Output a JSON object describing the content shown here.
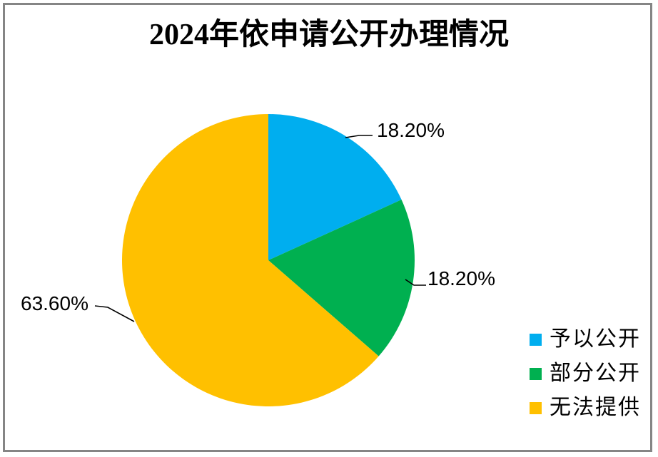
{
  "chart_data": {
    "type": "pie",
    "title": "2024年依申请公开办理情况",
    "start_angle_deg": 0,
    "direction": "clockwise",
    "legend_position": "bottom-right",
    "slices": [
      {
        "name": "予以公开",
        "value": 18.2,
        "label": "18.20%",
        "color": "#00AEEF"
      },
      {
        "name": "部分公开",
        "value": 18.2,
        "label": "18.20%",
        "color": "#00B050"
      },
      {
        "name": "无法提供",
        "value": 63.6,
        "label": "63.60%",
        "color": "#FFC000"
      }
    ],
    "frame_border_color": "#858585",
    "leader_line_color": "#000000"
  }
}
